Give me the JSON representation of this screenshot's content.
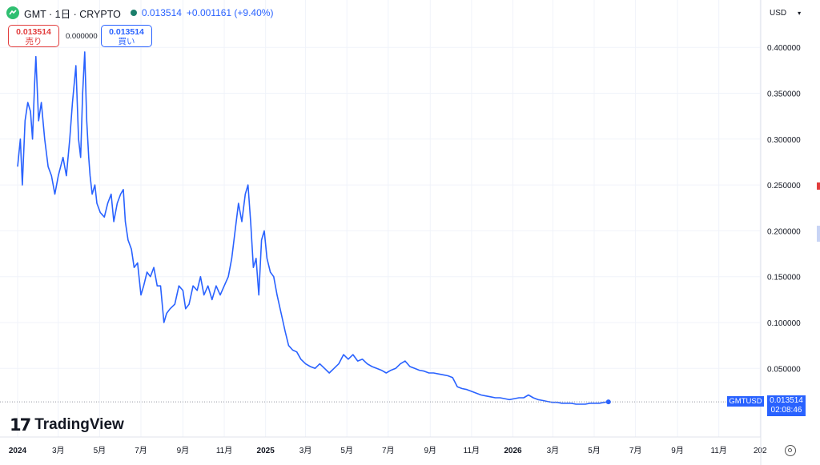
{
  "header": {
    "symbol_title": "GMT · 1日 · CRYPTO",
    "last_price": "0.013514",
    "change": "+0.001161 (+9.40%)"
  },
  "trade": {
    "sell_value": "0.013514",
    "sell_label": "売り",
    "spread": "0.000000",
    "buy_value": "0.013514",
    "buy_label": "買い"
  },
  "currency_selector": "USD",
  "price_label": {
    "symbol": "GMTUSD",
    "value": "0.013514",
    "countdown": "02:08:46"
  },
  "brand": {
    "name": "TradingView"
  },
  "colors": {
    "line": "#2962ff",
    "grid": "#f0f3fa",
    "axis_text": "#131722",
    "sell": "#e23d3d",
    "buy": "#2962ff"
  },
  "chart_data": {
    "type": "line",
    "title": "",
    "xlabel": "",
    "ylabel": "",
    "x_tick_labels": [
      "2024",
      "3月",
      "5月",
      "7月",
      "9月",
      "11月",
      "2025",
      "3月",
      "5月",
      "7月",
      "9月",
      "11月",
      "2026",
      "3月",
      "5月",
      "7月",
      "9月",
      "11月",
      "202"
    ],
    "y_tick_labels": [
      "0.050000",
      "0.100000",
      "0.150000",
      "0.200000",
      "0.250000",
      "0.300000",
      "0.350000",
      "0.400000"
    ],
    "ylim": [
      0.0,
      0.43
    ],
    "grid": true,
    "series": [
      {
        "name": "GMTUSD",
        "points": [
          [
            "2024-01-01",
            0.27
          ],
          [
            "2024-01-05",
            0.3
          ],
          [
            "2024-01-08",
            0.25
          ],
          [
            "2024-01-12",
            0.32
          ],
          [
            "2024-01-16",
            0.34
          ],
          [
            "2024-01-20",
            0.33
          ],
          [
            "2024-01-23",
            0.3
          ],
          [
            "2024-01-26",
            0.36
          ],
          [
            "2024-01-28",
            0.39
          ],
          [
            "2024-02-01",
            0.32
          ],
          [
            "2024-02-05",
            0.34
          ],
          [
            "2024-02-10",
            0.3
          ],
          [
            "2024-02-15",
            0.27
          ],
          [
            "2024-02-20",
            0.26
          ],
          [
            "2024-02-25",
            0.24
          ],
          [
            "2024-03-01",
            0.26
          ],
          [
            "2024-03-08",
            0.28
          ],
          [
            "2024-03-13",
            0.26
          ],
          [
            "2024-03-18",
            0.3
          ],
          [
            "2024-03-22",
            0.34
          ],
          [
            "2024-03-27",
            0.38
          ],
          [
            "2024-03-31",
            0.3
          ],
          [
            "2024-04-03",
            0.28
          ],
          [
            "2024-04-06",
            0.35
          ],
          [
            "2024-04-09",
            0.395
          ],
          [
            "2024-04-12",
            0.32
          ],
          [
            "2024-04-15",
            0.28
          ],
          [
            "2024-04-17",
            0.26
          ],
          [
            "2024-04-20",
            0.24
          ],
          [
            "2024-04-24",
            0.25
          ],
          [
            "2024-04-27",
            0.23
          ],
          [
            "2024-05-02",
            0.22
          ],
          [
            "2024-05-08",
            0.215
          ],
          [
            "2024-05-13",
            0.23
          ],
          [
            "2024-05-18",
            0.24
          ],
          [
            "2024-05-22",
            0.21
          ],
          [
            "2024-05-27",
            0.23
          ],
          [
            "2024-06-01",
            0.24
          ],
          [
            "2024-06-05",
            0.245
          ],
          [
            "2024-06-08",
            0.21
          ],
          [
            "2024-06-12",
            0.19
          ],
          [
            "2024-06-17",
            0.18
          ],
          [
            "2024-06-21",
            0.16
          ],
          [
            "2024-06-26",
            0.165
          ],
          [
            "2024-07-01",
            0.13
          ],
          [
            "2024-07-05",
            0.14
          ],
          [
            "2024-07-10",
            0.155
          ],
          [
            "2024-07-15",
            0.15
          ],
          [
            "2024-07-20",
            0.16
          ],
          [
            "2024-07-25",
            0.14
          ],
          [
            "2024-07-30",
            0.14
          ],
          [
            "2024-08-04",
            0.1
          ],
          [
            "2024-08-08",
            0.11
          ],
          [
            "2024-08-13",
            0.115
          ],
          [
            "2024-08-20",
            0.12
          ],
          [
            "2024-08-26",
            0.14
          ],
          [
            "2024-09-01",
            0.135
          ],
          [
            "2024-09-05",
            0.115
          ],
          [
            "2024-09-10",
            0.12
          ],
          [
            "2024-09-16",
            0.14
          ],
          [
            "2024-09-22",
            0.135
          ],
          [
            "2024-09-27",
            0.15
          ],
          [
            "2024-10-02",
            0.13
          ],
          [
            "2024-10-08",
            0.14
          ],
          [
            "2024-10-14",
            0.125
          ],
          [
            "2024-10-20",
            0.14
          ],
          [
            "2024-10-26",
            0.13
          ],
          [
            "2024-11-01",
            0.14
          ],
          [
            "2024-11-07",
            0.15
          ],
          [
            "2024-11-12",
            0.17
          ],
          [
            "2024-11-17",
            0.2
          ],
          [
            "2024-11-22",
            0.23
          ],
          [
            "2024-11-27",
            0.21
          ],
          [
            "2024-12-02",
            0.24
          ],
          [
            "2024-12-06",
            0.25
          ],
          [
            "2024-12-10",
            0.21
          ],
          [
            "2024-12-14",
            0.16
          ],
          [
            "2024-12-18",
            0.17
          ],
          [
            "2024-12-22",
            0.13
          ],
          [
            "2024-12-26",
            0.19
          ],
          [
            "2024-12-30",
            0.2
          ],
          [
            "2025-01-03",
            0.17
          ],
          [
            "2025-01-08",
            0.155
          ],
          [
            "2025-01-13",
            0.15
          ],
          [
            "2025-01-18",
            0.13
          ],
          [
            "2025-01-24",
            0.11
          ],
          [
            "2025-01-30",
            0.09
          ],
          [
            "2025-02-04",
            0.075
          ],
          [
            "2025-02-10",
            0.07
          ],
          [
            "2025-02-16",
            0.068
          ],
          [
            "2025-02-22",
            0.06
          ],
          [
            "2025-03-01",
            0.055
          ],
          [
            "2025-03-08",
            0.052
          ],
          [
            "2025-03-15",
            0.05
          ],
          [
            "2025-03-22",
            0.055
          ],
          [
            "2025-03-29",
            0.05
          ],
          [
            "2025-04-05",
            0.045
          ],
          [
            "2025-04-12",
            0.05
          ],
          [
            "2025-04-19",
            0.055
          ],
          [
            "2025-04-26",
            0.065
          ],
          [
            "2025-05-03",
            0.06
          ],
          [
            "2025-05-10",
            0.065
          ],
          [
            "2025-05-17",
            0.058
          ],
          [
            "2025-05-24",
            0.06
          ],
          [
            "2025-05-31",
            0.055
          ],
          [
            "2025-06-07",
            0.052
          ],
          [
            "2025-06-14",
            0.05
          ],
          [
            "2025-06-21",
            0.048
          ],
          [
            "2025-06-28",
            0.045
          ],
          [
            "2025-07-05",
            0.048
          ],
          [
            "2025-07-12",
            0.05
          ],
          [
            "2025-07-19",
            0.055
          ],
          [
            "2025-07-26",
            0.058
          ],
          [
            "2025-08-02",
            0.052
          ],
          [
            "2025-08-09",
            0.05
          ],
          [
            "2025-08-16",
            0.048
          ],
          [
            "2025-08-23",
            0.047
          ],
          [
            "2025-08-30",
            0.045
          ],
          [
            "2025-09-06",
            0.045
          ],
          [
            "2025-09-13",
            0.044
          ],
          [
            "2025-09-20",
            0.043
          ],
          [
            "2025-09-27",
            0.042
          ],
          [
            "2025-10-04",
            0.04
          ],
          [
            "2025-10-11",
            0.03
          ],
          [
            "2025-10-18",
            0.028
          ],
          [
            "2025-10-25",
            0.027
          ],
          [
            "2025-11-01",
            0.025
          ],
          [
            "2025-11-08",
            0.023
          ],
          [
            "2025-11-15",
            0.021
          ],
          [
            "2025-11-22",
            0.02
          ],
          [
            "2025-11-29",
            0.019
          ],
          [
            "2025-12-06",
            0.018
          ],
          [
            "2025-12-13",
            0.018
          ],
          [
            "2025-12-20",
            0.017
          ],
          [
            "2025-12-27",
            0.016
          ],
          [
            "2026-01-03",
            0.017
          ],
          [
            "2026-01-10",
            0.018
          ],
          [
            "2026-01-17",
            0.018
          ],
          [
            "2026-01-24",
            0.021
          ],
          [
            "2026-01-31",
            0.018
          ],
          [
            "2026-02-07",
            0.016
          ],
          [
            "2026-02-14",
            0.015
          ],
          [
            "2026-02-21",
            0.014
          ],
          [
            "2026-02-28",
            0.013
          ],
          [
            "2026-03-07",
            0.013
          ],
          [
            "2026-03-14",
            0.012
          ],
          [
            "2026-03-21",
            0.012
          ],
          [
            "2026-03-28",
            0.012
          ],
          [
            "2026-04-04",
            0.011
          ],
          [
            "2026-04-11",
            0.011
          ],
          [
            "2026-04-18",
            0.011
          ],
          [
            "2026-04-25",
            0.012
          ],
          [
            "2026-05-02",
            0.012
          ],
          [
            "2026-05-09",
            0.012
          ],
          [
            "2026-05-16",
            0.013
          ],
          [
            "2026-05-22",
            0.0135
          ]
        ]
      }
    ]
  }
}
